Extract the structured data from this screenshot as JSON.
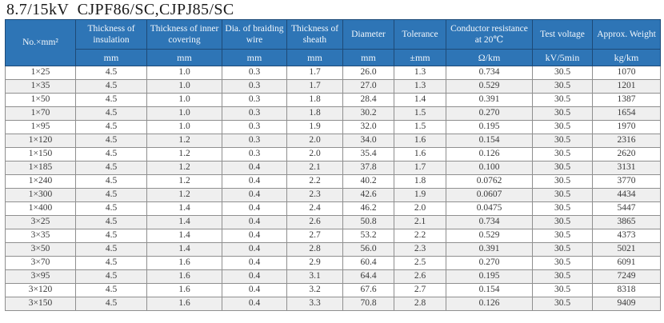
{
  "title": "8.7/15kV  CJPF86/SC,CJPJ85/SC",
  "colors": {
    "header_bg": "#2e75b6",
    "header_border": "#1e4a77",
    "header_text": "#f2f7fc",
    "row_alt": "#efefef",
    "body_border": "#8f8f8f",
    "body_text": "#3a3a3a"
  },
  "table": {
    "columns": [
      {
        "label": "No.×mm²",
        "unit": null
      },
      {
        "label": "Thickness of insulation",
        "unit": "mm"
      },
      {
        "label": "Thickness of inner covering",
        "unit": "mm"
      },
      {
        "label": "Dia. of braiding wire",
        "unit": "mm"
      },
      {
        "label": "Thickness of sheath",
        "unit": "mm"
      },
      {
        "label": "Diameter",
        "unit": "mm"
      },
      {
        "label": "Tolerance",
        "unit": "±mm"
      },
      {
        "label": "Conductor resistance at 20℃",
        "unit": "Ω/km"
      },
      {
        "label": "Test voltage",
        "unit": "kV/5min"
      },
      {
        "label": "Approx. Weight",
        "unit": "kg/km"
      }
    ],
    "rows": [
      [
        "1×25",
        "4.5",
        "1.0",
        "0.3",
        "1.7",
        "26.0",
        "1.3",
        "0.734",
        "30.5",
        "1070"
      ],
      [
        "1×35",
        "4.5",
        "1.0",
        "0.3",
        "1.7",
        "27.0",
        "1.3",
        "0.529",
        "30.5",
        "1201"
      ],
      [
        "1×50",
        "4.5",
        "1.0",
        "0.3",
        "1.8",
        "28.4",
        "1.4",
        "0.391",
        "30.5",
        "1387"
      ],
      [
        "1×70",
        "4.5",
        "1.0",
        "0.3",
        "1.8",
        "30.2",
        "1.5",
        "0.270",
        "30.5",
        "1654"
      ],
      [
        "1×95",
        "4.5",
        "1.0",
        "0.3",
        "1.9",
        "32.0",
        "1.5",
        "0.195",
        "30.5",
        "1970"
      ],
      [
        "1×120",
        "4.5",
        "1.2",
        "0.3",
        "2.0",
        "34.0",
        "1.6",
        "0.154",
        "30.5",
        "2316"
      ],
      [
        "1×150",
        "4.5",
        "1.2",
        "0.3",
        "2.0",
        "35.4",
        "1.6",
        "0.126",
        "30.5",
        "2620"
      ],
      [
        "1×185",
        "4.5",
        "1.2",
        "0.4",
        "2.1",
        "37.8",
        "1.7",
        "0.100",
        "30.5",
        "3131"
      ],
      [
        "1×240",
        "4.5",
        "1.2",
        "0.4",
        "2.2",
        "40.2",
        "1.8",
        "0.0762",
        "30.5",
        "3770"
      ],
      [
        "1×300",
        "4.5",
        "1.2",
        "0.4",
        "2.3",
        "42.6",
        "1.9",
        "0.0607",
        "30.5",
        "4434"
      ],
      [
        "1×400",
        "4.5",
        "1.4",
        "0.4",
        "2.4",
        "46.2",
        "2.0",
        "0.0475",
        "30.5",
        "5447"
      ],
      [
        "3×25",
        "4.5",
        "1.4",
        "0.4",
        "2.6",
        "50.8",
        "2.1",
        "0.734",
        "30.5",
        "3865"
      ],
      [
        "3×35",
        "4.5",
        "1.4",
        "0.4",
        "2.7",
        "53.2",
        "2.2",
        "0.529",
        "30.5",
        "4373"
      ],
      [
        "3×50",
        "4.5",
        "1.4",
        "0.4",
        "2.8",
        "56.0",
        "2.3",
        "0.391",
        "30.5",
        "5021"
      ],
      [
        "3×70",
        "4.5",
        "1.6",
        "0.4",
        "2.9",
        "60.4",
        "2.5",
        "0.270",
        "30.5",
        "6091"
      ],
      [
        "3×95",
        "4.5",
        "1.6",
        "0.4",
        "3.1",
        "64.4",
        "2.6",
        "0.195",
        "30.5",
        "7249"
      ],
      [
        "3×120",
        "4.5",
        "1.6",
        "0.4",
        "3.2",
        "67.6",
        "2.7",
        "0.154",
        "30.5",
        "8318"
      ],
      [
        "3×150",
        "4.5",
        "1.6",
        "0.4",
        "3.3",
        "70.8",
        "2.8",
        "0.126",
        "30.5",
        "9409"
      ]
    ]
  }
}
